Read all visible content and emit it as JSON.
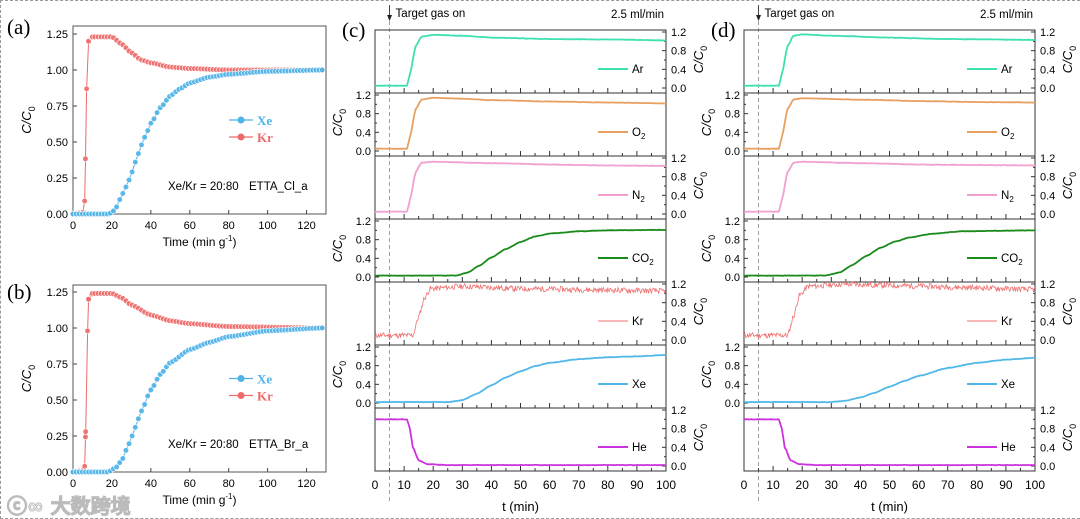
{
  "watermark": "ⓒ∞ 大数跨境",
  "chart_data": [
    {
      "panel": "(a)",
      "type": "scatter-line",
      "xlabel": "Time (min g-1)",
      "ylabel": "C/C0",
      "xlim": [
        0,
        130
      ],
      "ylim": [
        0,
        1.25
      ],
      "xticks": [
        0,
        20,
        40,
        60,
        80,
        100,
        120
      ],
      "yticks": [
        "0.00",
        "0.25",
        "0.50",
        "0.75",
        "1.00",
        "1.25"
      ],
      "annotation": "Xe/Kr = 20:80",
      "sample": "ETTA_Cl_a",
      "series": [
        {
          "name": "Xe",
          "color": "#4fb3e8",
          "points": [
            [
              0,
              0
            ],
            [
              18,
              0
            ],
            [
              20,
              0.01
            ],
            [
              22,
              0.04
            ],
            [
              24,
              0.1
            ],
            [
              26,
              0.15
            ],
            [
              28,
              0.21
            ],
            [
              30,
              0.28
            ],
            [
              32,
              0.36
            ],
            [
              34,
              0.43
            ],
            [
              36,
              0.51
            ],
            [
              38,
              0.57
            ],
            [
              40,
              0.63
            ],
            [
              45,
              0.74
            ],
            [
              50,
              0.82
            ],
            [
              55,
              0.87
            ],
            [
              60,
              0.91
            ],
            [
              70,
              0.95
            ],
            [
              80,
              0.97
            ],
            [
              100,
              0.99
            ],
            [
              128,
              1.0
            ]
          ]
        },
        {
          "name": "Kr",
          "color": "#ee6b6b",
          "points": [
            [
              0,
              0
            ],
            [
              5,
              0.01
            ],
            [
              6,
              0.09
            ],
            [
              7,
              0.87
            ],
            [
              8,
              1.2
            ],
            [
              10,
              1.23
            ],
            [
              20,
              1.23
            ],
            [
              25,
              1.18
            ],
            [
              30,
              1.12
            ],
            [
              35,
              1.07
            ],
            [
              40,
              1.05
            ],
            [
              50,
              1.02
            ],
            [
              60,
              1.01
            ],
            [
              80,
              1.0
            ],
            [
              128,
              1.0
            ]
          ]
        }
      ]
    },
    {
      "panel": "(b)",
      "type": "scatter-line",
      "xlabel": "Time (min g-1)",
      "ylabel": "C/C0",
      "xlim": [
        0,
        130
      ],
      "ylim": [
        0,
        1.25
      ],
      "xticks": [
        0,
        20,
        40,
        60,
        80,
        100,
        120
      ],
      "yticks": [
        "0.00",
        "0.25",
        "0.50",
        "0.75",
        "1.00",
        "1.25"
      ],
      "annotation": "Xe/Kr = 20:80",
      "sample": "ETTA_Br_a",
      "series": [
        {
          "name": "Xe",
          "color": "#4fb3e8",
          "points": [
            [
              0,
              0
            ],
            [
              18,
              0
            ],
            [
              22,
              0.03
            ],
            [
              25,
              0.08
            ],
            [
              28,
              0.17
            ],
            [
              30,
              0.24
            ],
            [
              32,
              0.31
            ],
            [
              35,
              0.42
            ],
            [
              40,
              0.57
            ],
            [
              45,
              0.68
            ],
            [
              50,
              0.76
            ],
            [
              60,
              0.85
            ],
            [
              70,
              0.9
            ],
            [
              80,
              0.94
            ],
            [
              100,
              0.98
            ],
            [
              128,
              1.0
            ]
          ]
        },
        {
          "name": "Kr",
          "color": "#ee6b6b",
          "points": [
            [
              0,
              0
            ],
            [
              5,
              0.01
            ],
            [
              6,
              0.04
            ],
            [
              6.5,
              0.28
            ],
            [
              7.5,
              0.98
            ],
            [
              8,
              1.2
            ],
            [
              10,
              1.24
            ],
            [
              20,
              1.24
            ],
            [
              25,
              1.21
            ],
            [
              30,
              1.16
            ],
            [
              40,
              1.09
            ],
            [
              50,
              1.05
            ],
            [
              60,
              1.03
            ],
            [
              80,
              1.01
            ],
            [
              128,
              1.0
            ]
          ]
        }
      ]
    },
    {
      "panel": "(c)",
      "type": "line",
      "annotation_top": "Target gas on",
      "flow": "2.5 ml/min",
      "gas_on_t": 5,
      "xlabel": "t (min)",
      "ylabel": "C/C0",
      "xlim": [
        0,
        100
      ],
      "ylim": [
        0,
        1.2
      ],
      "xticks": [
        0,
        10,
        20,
        30,
        40,
        50,
        60,
        70,
        80,
        90,
        100
      ],
      "yticks": [
        "0.0",
        "0.4",
        "0.8",
        "1.2"
      ],
      "series": [
        {
          "name": "Ar",
          "label": "Ar",
          "sub": "",
          "color": "#3de0b0",
          "points": [
            [
              0,
              0.05
            ],
            [
              11,
              0.05
            ],
            [
              12,
              0.3
            ],
            [
              14,
              0.9
            ],
            [
              16,
              1.1
            ],
            [
              20,
              1.14
            ],
            [
              30,
              1.12
            ],
            [
              40,
              1.08
            ],
            [
              60,
              1.05
            ],
            [
              80,
              1.04
            ],
            [
              100,
              1.02
            ]
          ]
        },
        {
          "name": "O2",
          "label": "O",
          "sub": "2",
          "color": "#e8a060",
          "points": [
            [
              0,
              0.05
            ],
            [
              11,
              0.05
            ],
            [
              12,
              0.3
            ],
            [
              14,
              0.9
            ],
            [
              16,
              1.1
            ],
            [
              20,
              1.14
            ],
            [
              30,
              1.12
            ],
            [
              40,
              1.09
            ],
            [
              60,
              1.06
            ],
            [
              80,
              1.04
            ],
            [
              100,
              1.02
            ]
          ]
        },
        {
          "name": "N2",
          "label": "N",
          "sub": "2",
          "color": "#f2a0d0",
          "points": [
            [
              0,
              0.05
            ],
            [
              11,
              0.05
            ],
            [
              12,
              0.3
            ],
            [
              14,
              0.9
            ],
            [
              16,
              1.1
            ],
            [
              20,
              1.12
            ],
            [
              40,
              1.09
            ],
            [
              60,
              1.06
            ],
            [
              80,
              1.04
            ],
            [
              100,
              1.03
            ]
          ]
        },
        {
          "name": "CO2",
          "label": "CO",
          "sub": "2",
          "color": "#1a8a1a",
          "points": [
            [
              0,
              0.03
            ],
            [
              28,
              0.03
            ],
            [
              32,
              0.1
            ],
            [
              36,
              0.25
            ],
            [
              40,
              0.42
            ],
            [
              45,
              0.6
            ],
            [
              50,
              0.75
            ],
            [
              55,
              0.87
            ],
            [
              60,
              0.93
            ],
            [
              70,
              0.98
            ],
            [
              80,
              1.0
            ],
            [
              100,
              1.01
            ]
          ]
        },
        {
          "name": "Kr",
          "label": "Kr",
          "sub": "",
          "color": "#f07070",
          "noise": 0.06,
          "points": [
            [
              0,
              0.1
            ],
            [
              13,
              0.1
            ],
            [
              15,
              0.5
            ],
            [
              17,
              0.9
            ],
            [
              19,
              1.1
            ],
            [
              30,
              1.15
            ],
            [
              50,
              1.1
            ],
            [
              80,
              1.07
            ],
            [
              100,
              1.05
            ]
          ]
        },
        {
          "name": "Xe",
          "label": "Xe",
          "sub": "",
          "color": "#50b8e8",
          "points": [
            [
              0,
              0.02
            ],
            [
              25,
              0.02
            ],
            [
              30,
              0.06
            ],
            [
              35,
              0.2
            ],
            [
              40,
              0.38
            ],
            [
              45,
              0.55
            ],
            [
              50,
              0.68
            ],
            [
              55,
              0.79
            ],
            [
              60,
              0.86
            ],
            [
              70,
              0.94
            ],
            [
              80,
              0.98
            ],
            [
              90,
              1.0
            ],
            [
              100,
              1.03
            ]
          ]
        },
        {
          "name": "He",
          "label": "He",
          "sub": "",
          "color": "#cc33dd",
          "points": [
            [
              0,
              1.0
            ],
            [
              11,
              1.0
            ],
            [
              12,
              0.8
            ],
            [
              13,
              0.4
            ],
            [
              15,
              0.12
            ],
            [
              18,
              0.04
            ],
            [
              25,
              0.02
            ],
            [
              100,
              0.02
            ]
          ]
        }
      ]
    },
    {
      "panel": "(d)",
      "type": "line",
      "annotation_top": "Target gas on",
      "flow": "2.5 ml/min",
      "gas_on_t": 5,
      "xlabel": "t (min)",
      "ylabel": "C/C0",
      "xlim": [
        0,
        100
      ],
      "ylim": [
        0,
        1.2
      ],
      "xticks": [
        0,
        10,
        20,
        30,
        40,
        50,
        60,
        70,
        80,
        90,
        100
      ],
      "yticks": [
        "0.0",
        "0.4",
        "0.8",
        "1.2"
      ],
      "series": [
        {
          "name": "Ar",
          "label": "Ar",
          "sub": "",
          "color": "#3de0b0",
          "points": [
            [
              0,
              0.05
            ],
            [
              12,
              0.05
            ],
            [
              13,
              0.3
            ],
            [
              15,
              0.9
            ],
            [
              17,
              1.12
            ],
            [
              20,
              1.15
            ],
            [
              30,
              1.12
            ],
            [
              50,
              1.08
            ],
            [
              70,
              1.05
            ],
            [
              100,
              1.03
            ]
          ]
        },
        {
          "name": "O2",
          "label": "O",
          "sub": "2",
          "color": "#e8a060",
          "points": [
            [
              0,
              0.05
            ],
            [
              12,
              0.05
            ],
            [
              13,
              0.3
            ],
            [
              15,
              0.9
            ],
            [
              17,
              1.1
            ],
            [
              20,
              1.13
            ],
            [
              40,
              1.1
            ],
            [
              60,
              1.07
            ],
            [
              80,
              1.05
            ],
            [
              100,
              1.04
            ]
          ]
        },
        {
          "name": "N2",
          "label": "N",
          "sub": "2",
          "color": "#f2a0d0",
          "points": [
            [
              0,
              0.05
            ],
            [
              12,
              0.05
            ],
            [
              13,
              0.3
            ],
            [
              15,
              0.9
            ],
            [
              17,
              1.1
            ],
            [
              20,
              1.12
            ],
            [
              40,
              1.09
            ],
            [
              60,
              1.06
            ],
            [
              80,
              1.05
            ],
            [
              100,
              1.04
            ]
          ]
        },
        {
          "name": "CO2",
          "label": "CO",
          "sub": "2",
          "color": "#1a8a1a",
          "points": [
            [
              0,
              0.03
            ],
            [
              28,
              0.03
            ],
            [
              33,
              0.1
            ],
            [
              37,
              0.25
            ],
            [
              42,
              0.45
            ],
            [
              47,
              0.63
            ],
            [
              52,
              0.76
            ],
            [
              57,
              0.85
            ],
            [
              65,
              0.93
            ],
            [
              75,
              0.98
            ],
            [
              100,
              1.0
            ]
          ]
        },
        {
          "name": "Kr",
          "label": "Kr",
          "sub": "",
          "color": "#f07070",
          "noise": 0.06,
          "points": [
            [
              0,
              0.1
            ],
            [
              15,
              0.1
            ],
            [
              17,
              0.5
            ],
            [
              19,
              0.95
            ],
            [
              22,
              1.15
            ],
            [
              35,
              1.2
            ],
            [
              50,
              1.17
            ],
            [
              80,
              1.12
            ],
            [
              100,
              1.08
            ]
          ]
        },
        {
          "name": "Xe",
          "label": "Xe",
          "sub": "",
          "color": "#50b8e8",
          "points": [
            [
              0,
              0.02
            ],
            [
              30,
              0.02
            ],
            [
              35,
              0.05
            ],
            [
              40,
              0.12
            ],
            [
              45,
              0.22
            ],
            [
              50,
              0.35
            ],
            [
              55,
              0.47
            ],
            [
              60,
              0.58
            ],
            [
              70,
              0.75
            ],
            [
              80,
              0.86
            ],
            [
              90,
              0.93
            ],
            [
              100,
              0.97
            ]
          ]
        },
        {
          "name": "He",
          "label": "He",
          "sub": "",
          "color": "#cc33dd",
          "points": [
            [
              0,
              1.0
            ],
            [
              12,
              1.0
            ],
            [
              13,
              0.8
            ],
            [
              14,
              0.4
            ],
            [
              16,
              0.12
            ],
            [
              19,
              0.04
            ],
            [
              25,
              0.02
            ],
            [
              100,
              0.02
            ]
          ]
        }
      ]
    }
  ]
}
